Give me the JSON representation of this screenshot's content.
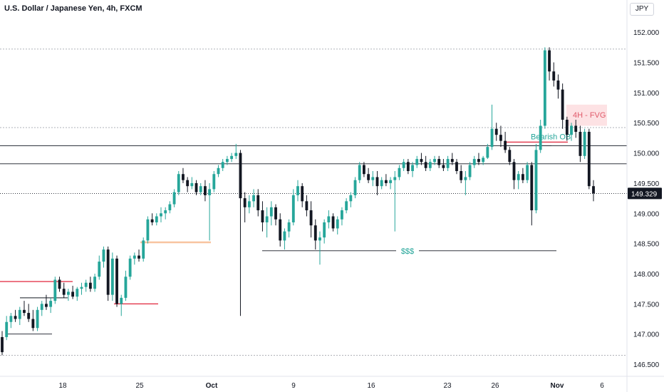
{
  "header": {
    "symbol": "U.S. Dollar / Japanese Yen",
    "timeframe": "4h",
    "exchange": "FXCM",
    "title": "U.S. Dollar / Japanese Yen, 4h, FXCM"
  },
  "currency_button": "JPY",
  "colors": {
    "up": "#26a69a",
    "down": "#131722",
    "resistance": "#e0243a",
    "ob_line": "#e0243a",
    "fvg_fill": "#fde2e4",
    "fvg_text": "#e05a6a",
    "target_text": "#26a69a",
    "support_orange": "#f8c4a0",
    "price_label_bg": "#131722"
  },
  "chart_data": {
    "type": "candlestick",
    "title": "U.S. Dollar / Japanese Yen, 4h, FXCM",
    "ylim": [
      146.3,
      152.25
    ],
    "y_ticks": [
      "152.000",
      "151.500",
      "151.000",
      "150.500",
      "150.000",
      "149.500",
      "149.000",
      "148.500",
      "148.000",
      "147.500",
      "147.000",
      "146.500"
    ],
    "x_ticks": [
      "18",
      "25",
      "Oct",
      "9",
      "16",
      "23",
      "26",
      "Nov",
      "6"
    ],
    "last_price": "149.329",
    "annotations": {
      "bearish_ob": "Bearish OB",
      "fvg": "4H - FVG",
      "liquidity": "$$$"
    },
    "horizontal_lines": [
      150.12,
      149.82
    ],
    "dotted_levels": [
      151.72,
      150.42,
      146.65
    ],
    "candles": [
      [
        146.95,
        147.05,
        146.65,
        146.7
      ],
      [
        146.95,
        147.3,
        146.9,
        147.2
      ],
      [
        147.2,
        147.35,
        147.1,
        147.3
      ],
      [
        147.3,
        147.4,
        147.2,
        147.25
      ],
      [
        147.25,
        147.45,
        147.15,
        147.4
      ],
      [
        147.4,
        147.55,
        147.3,
        147.35
      ],
      [
        147.35,
        147.5,
        147.2,
        147.25
      ],
      [
        147.25,
        147.4,
        147.05,
        147.1
      ],
      [
        147.1,
        147.45,
        147.05,
        147.4
      ],
      [
        147.4,
        147.55,
        147.3,
        147.5
      ],
      [
        147.5,
        147.65,
        147.4,
        147.45
      ],
      [
        147.45,
        147.6,
        147.35,
        147.55
      ],
      [
        147.55,
        147.95,
        147.5,
        147.9
      ],
      [
        147.9,
        147.95,
        147.7,
        147.75
      ],
      [
        147.75,
        147.85,
        147.6,
        147.65
      ],
      [
        147.65,
        147.75,
        147.55,
        147.7
      ],
      [
        147.7,
        147.8,
        147.58,
        147.62
      ],
      [
        147.62,
        147.78,
        147.55,
        147.75
      ],
      [
        147.75,
        147.85,
        147.65,
        147.78
      ],
      [
        147.78,
        147.9,
        147.7,
        147.85
      ],
      [
        147.85,
        147.95,
        147.7,
        147.75
      ],
      [
        147.75,
        148.0,
        147.7,
        147.95
      ],
      [
        147.95,
        148.3,
        147.9,
        148.2
      ],
      [
        148.2,
        148.45,
        148.1,
        148.4
      ],
      [
        148.4,
        148.45,
        147.55,
        147.65
      ],
      [
        147.65,
        148.35,
        147.55,
        148.25
      ],
      [
        148.25,
        148.3,
        147.45,
        147.5
      ],
      [
        147.5,
        147.65,
        147.3,
        147.6
      ],
      [
        147.6,
        148.05,
        147.55,
        147.95
      ],
      [
        147.95,
        148.3,
        147.9,
        148.25
      ],
      [
        148.25,
        148.35,
        148.15,
        148.3
      ],
      [
        148.3,
        148.4,
        148.2,
        148.25
      ],
      [
        148.25,
        148.6,
        148.2,
        148.55
      ],
      [
        148.55,
        148.95,
        148.5,
        148.9
      ],
      [
        148.9,
        149.0,
        148.8,
        148.85
      ],
      [
        148.85,
        149.0,
        148.8,
        148.95
      ],
      [
        148.95,
        149.1,
        148.85,
        149.0
      ],
      [
        149.0,
        149.1,
        148.9,
        149.05
      ],
      [
        149.05,
        149.2,
        149.0,
        149.15
      ],
      [
        149.15,
        149.4,
        149.1,
        149.35
      ],
      [
        149.35,
        149.7,
        149.3,
        149.65
      ],
      [
        149.65,
        149.75,
        149.5,
        149.55
      ],
      [
        149.55,
        149.6,
        149.35,
        149.45
      ],
      [
        149.45,
        149.6,
        149.4,
        149.5
      ],
      [
        149.5,
        149.55,
        149.3,
        149.35
      ],
      [
        149.35,
        149.5,
        149.3,
        149.45
      ],
      [
        149.45,
        149.55,
        149.2,
        149.3
      ],
      [
        149.3,
        149.5,
        148.55,
        149.4
      ],
      [
        149.4,
        149.7,
        149.35,
        149.65
      ],
      [
        149.65,
        149.8,
        149.6,
        149.75
      ],
      [
        149.75,
        149.9,
        149.7,
        149.85
      ],
      [
        149.85,
        149.95,
        149.8,
        149.9
      ],
      [
        149.9,
        150.0,
        149.85,
        149.95
      ],
      [
        149.95,
        150.15,
        149.9,
        150.0
      ],
      [
        150.0,
        150.05,
        147.3,
        149.25
      ],
      [
        149.25,
        149.35,
        148.85,
        149.1
      ],
      [
        149.1,
        149.3,
        149.0,
        149.2
      ],
      [
        149.2,
        149.4,
        149.1,
        149.3
      ],
      [
        149.3,
        149.4,
        148.95,
        149.05
      ],
      [
        149.05,
        149.2,
        148.7,
        148.85
      ],
      [
        148.85,
        149.1,
        148.6,
        148.95
      ],
      [
        148.95,
        149.2,
        148.8,
        149.1
      ],
      [
        149.1,
        149.15,
        148.8,
        148.9
      ],
      [
        148.9,
        149.0,
        148.45,
        148.55
      ],
      [
        148.55,
        148.75,
        148.4,
        148.7
      ],
      [
        148.7,
        148.9,
        148.6,
        148.85
      ],
      [
        148.85,
        149.4,
        148.8,
        149.3
      ],
      [
        149.3,
        149.55,
        149.2,
        149.45
      ],
      [
        149.45,
        149.5,
        149.1,
        149.2
      ],
      [
        149.2,
        149.3,
        148.95,
        149.05
      ],
      [
        149.05,
        149.2,
        148.6,
        148.8
      ],
      [
        148.8,
        148.9,
        148.4,
        148.55
      ],
      [
        148.55,
        148.7,
        148.15,
        148.6
      ],
      [
        148.6,
        148.9,
        148.5,
        148.85
      ],
      [
        148.85,
        149.05,
        148.75,
        148.95
      ],
      [
        148.95,
        149.0,
        148.7,
        148.75
      ],
      [
        148.75,
        148.95,
        148.65,
        148.9
      ],
      [
        148.9,
        149.1,
        148.8,
        149.05
      ],
      [
        149.05,
        149.25,
        149.0,
        149.2
      ],
      [
        149.2,
        149.35,
        149.1,
        149.3
      ],
      [
        149.3,
        149.6,
        149.25,
        149.55
      ],
      [
        149.55,
        149.85,
        149.5,
        149.8
      ],
      [
        149.8,
        149.85,
        149.6,
        149.65
      ],
      [
        149.65,
        149.75,
        149.5,
        149.55
      ],
      [
        149.55,
        149.7,
        149.45,
        149.6
      ],
      [
        149.6,
        149.7,
        149.3,
        149.45
      ],
      [
        149.45,
        149.6,
        149.4,
        149.55
      ],
      [
        149.55,
        149.65,
        149.45,
        149.5
      ],
      [
        149.5,
        149.6,
        149.4,
        149.55
      ],
      [
        149.55,
        149.7,
        148.7,
        149.6
      ],
      [
        149.6,
        149.8,
        149.55,
        149.75
      ],
      [
        149.75,
        149.9,
        149.7,
        149.85
      ],
      [
        149.85,
        149.9,
        149.65,
        149.7
      ],
      [
        149.7,
        149.85,
        149.6,
        149.8
      ],
      [
        149.8,
        149.95,
        149.75,
        149.9
      ],
      [
        149.9,
        150.0,
        149.8,
        149.85
      ],
      [
        149.85,
        149.95,
        149.7,
        149.75
      ],
      [
        149.75,
        149.9,
        149.7,
        149.85
      ],
      [
        149.85,
        149.95,
        149.8,
        149.9
      ],
      [
        149.9,
        149.95,
        149.75,
        149.8
      ],
      [
        149.8,
        149.9,
        149.7,
        149.75
      ],
      [
        149.75,
        149.95,
        149.7,
        149.9
      ],
      [
        149.9,
        150.0,
        149.8,
        149.85
      ],
      [
        149.85,
        149.9,
        149.65,
        149.7
      ],
      [
        149.7,
        149.8,
        149.5,
        149.55
      ],
      [
        149.55,
        149.7,
        149.3,
        149.6
      ],
      [
        149.6,
        149.85,
        149.55,
        149.8
      ],
      [
        149.8,
        149.95,
        149.75,
        149.9
      ],
      [
        149.9,
        150.0,
        149.8,
        149.85
      ],
      [
        149.85,
        149.95,
        149.8,
        149.92
      ],
      [
        149.92,
        150.15,
        149.9,
        150.1
      ],
      [
        150.1,
        150.8,
        150.05,
        150.4
      ],
      [
        150.4,
        150.5,
        150.2,
        150.3
      ],
      [
        150.3,
        150.45,
        150.1,
        150.2
      ],
      [
        150.2,
        150.35,
        150.0,
        150.05
      ],
      [
        150.05,
        150.1,
        149.8,
        149.85
      ],
      [
        149.85,
        149.9,
        149.4,
        149.55
      ],
      [
        149.55,
        149.7,
        149.4,
        149.65
      ],
      [
        149.65,
        149.75,
        149.5,
        149.55
      ],
      [
        149.55,
        149.85,
        149.5,
        149.8
      ],
      [
        149.8,
        149.85,
        148.8,
        149.05
      ],
      [
        149.05,
        150.15,
        149.0,
        150.05
      ],
      [
        150.05,
        150.55,
        150.0,
        150.45
      ],
      [
        150.45,
        151.75,
        150.4,
        151.7
      ],
      [
        151.7,
        151.75,
        151.2,
        151.35
      ],
      [
        151.35,
        151.5,
        151.1,
        151.2
      ],
      [
        151.2,
        151.3,
        150.9,
        151.05
      ],
      [
        151.05,
        151.15,
        150.4,
        150.55
      ],
      [
        150.55,
        150.6,
        150.2,
        150.3
      ],
      [
        150.3,
        150.5,
        150.2,
        150.45
      ],
      [
        150.45,
        150.55,
        150.25,
        150.35
      ],
      [
        150.35,
        150.45,
        149.85,
        149.95
      ],
      [
        149.95,
        150.4,
        149.9,
        150.35
      ],
      [
        150.35,
        150.4,
        149.4,
        149.45
      ],
      [
        149.45,
        149.55,
        149.2,
        149.33
      ]
    ]
  }
}
